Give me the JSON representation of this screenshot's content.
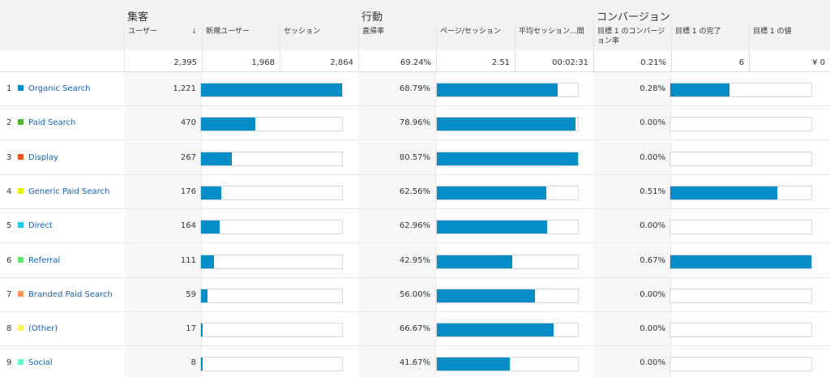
{
  "groups": {
    "acquisition": "集客",
    "behavior": "行動",
    "conversion": "コンバージョン"
  },
  "columns": {
    "users": "ユーザー",
    "users_sort_icon": "↓",
    "new_users": "新規ユーザー",
    "sessions": "セッション",
    "bounce_rate": "直帰率",
    "pages_per_session": "ページ/セッション",
    "avg_session": "平均セッション...間",
    "goal_conv_rate": "目標 1 のコンバージョン率",
    "goal_completions": "目標 1 の完了",
    "goal_value": "目標 1 の値"
  },
  "totals": {
    "users": "2,395",
    "new_users": "1,968",
    "sessions": "2,864",
    "bounce_rate": "69.24%",
    "pages_per_session": "2.51",
    "avg_session": "00:02:31",
    "goal_conv_rate": "0.21%",
    "goal_completions": "6",
    "goal_value": "¥ 0"
  },
  "rows": [
    {
      "index": "1",
      "source": "Organic Search",
      "color": "#058dc7",
      "users": "1,221",
      "users_frac": 1.0,
      "bounce": "68.79%",
      "bounce_frac": 0.854,
      "conv": "0.28%",
      "conv_frac": 0.418
    },
    {
      "index": "2",
      "source": "Paid Search",
      "color": "#50b432",
      "users": "470",
      "users_frac": 0.385,
      "bounce": "78.96%",
      "bounce_frac": 0.98,
      "conv": "0.00%",
      "conv_frac": 0.0
    },
    {
      "index": "3",
      "source": "Display",
      "color": "#ed561b",
      "users": "267",
      "users_frac": 0.219,
      "bounce": "80.57%",
      "bounce_frac": 1.0,
      "conv": "0.00%",
      "conv_frac": 0.0
    },
    {
      "index": "4",
      "source": "Generic Paid Search",
      "color": "#edef00",
      "users": "176",
      "users_frac": 0.144,
      "bounce": "62.56%",
      "bounce_frac": 0.776,
      "conv": "0.51%",
      "conv_frac": 0.761
    },
    {
      "index": "5",
      "source": "Direct",
      "color": "#24cbe5",
      "users": "164",
      "users_frac": 0.134,
      "bounce": "62.96%",
      "bounce_frac": 0.781,
      "conv": "0.00%",
      "conv_frac": 0.0
    },
    {
      "index": "6",
      "source": "Referral",
      "color": "#64e572",
      "users": "111",
      "users_frac": 0.091,
      "bounce": "42.95%",
      "bounce_frac": 0.533,
      "conv": "0.67%",
      "conv_frac": 1.0
    },
    {
      "index": "7",
      "source": "Branded Paid Search",
      "color": "#ff9655",
      "users": "59",
      "users_frac": 0.048,
      "bounce": "56.00%",
      "bounce_frac": 0.695,
      "conv": "0.00%",
      "conv_frac": 0.0
    },
    {
      "index": "8",
      "source": "(Other)",
      "color": "#fff263",
      "users": "17",
      "users_frac": 0.014,
      "bounce": "66.67%",
      "bounce_frac": 0.827,
      "conv": "0.00%",
      "conv_frac": 0.0
    },
    {
      "index": "9",
      "source": "Social",
      "color": "#6af9c4",
      "users": "8",
      "users_frac": 0.007,
      "bounce": "41.67%",
      "bounce_frac": 0.517,
      "conv": "0.00%",
      "conv_frac": 0.0
    }
  ]
}
